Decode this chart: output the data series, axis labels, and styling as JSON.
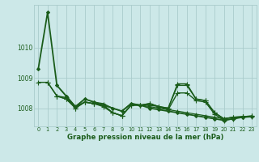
{
  "bg_color": "#cce8e8",
  "grid_color": "#aacccc",
  "line_color": "#1a5c1a",
  "title": "Graphe pression niveau de la mer (hPa)",
  "xlim": [
    -0.5,
    23.5
  ],
  "ylim": [
    1007.4,
    1011.4
  ],
  "yticks": [
    1008,
    1009,
    1010
  ],
  "xticks": [
    0,
    1,
    2,
    3,
    4,
    5,
    6,
    7,
    8,
    9,
    10,
    11,
    12,
    13,
    14,
    15,
    16,
    17,
    18,
    19,
    20,
    21,
    22,
    23
  ],
  "series": [
    {
      "x": [
        0,
        1,
        2,
        3,
        4,
        5,
        6,
        7,
        8,
        9,
        10,
        11,
        12,
        13,
        14,
        15,
        16,
        17,
        18,
        19,
        20,
        21,
        22,
        23
      ],
      "y": [
        1009.3,
        1011.15,
        1008.75,
        1008.4,
        1008.05,
        1008.3,
        1008.2,
        1008.1,
        1008.0,
        1007.9,
        1008.15,
        1008.1,
        1008.0,
        1007.95,
        1007.9,
        1007.85,
        1007.8,
        1007.75,
        1007.7,
        1007.65,
        1007.6,
        1007.65,
        1007.7,
        1007.72
      ],
      "marker": "D",
      "markersize": 2.0,
      "linewidth": 1.3,
      "zorder": 3
    },
    {
      "x": [
        1,
        2,
        3,
        4,
        5,
        6,
        7,
        8,
        9,
        10,
        11,
        12,
        13,
        14,
        15,
        16,
        17,
        18,
        19,
        20,
        21,
        22,
        23
      ],
      "y": [
        1008.85,
        1008.4,
        1008.3,
        1008.05,
        1008.2,
        1008.15,
        1008.05,
        1007.85,
        1007.75,
        1008.1,
        1008.1,
        1008.15,
        1008.05,
        1008.0,
        1008.75,
        1008.75,
        1008.3,
        1008.25,
        1007.85,
        1007.65,
        1007.7,
        1007.72,
        1007.74
      ],
      "marker": "+",
      "markersize": 4.5,
      "linewidth": 1.0,
      "zorder": 2
    },
    {
      "x": [
        0,
        1,
        2,
        3,
        4,
        5,
        6,
        7,
        8,
        9,
        10,
        11,
        12,
        13,
        14,
        15,
        16,
        17,
        18,
        19,
        20,
        21,
        22,
        23
      ],
      "y": [
        1008.85,
        1008.85,
        1008.4,
        1008.3,
        1008.0,
        1008.2,
        1008.15,
        1008.1,
        1007.85,
        1007.75,
        1008.1,
        1008.1,
        1008.1,
        1008.05,
        1007.95,
        1008.5,
        1008.5,
        1008.25,
        1008.2,
        1007.8,
        1007.6,
        1007.65,
        1007.72,
        1007.74
      ],
      "marker": "+",
      "markersize": 4.5,
      "linewidth": 1.0,
      "zorder": 2
    },
    {
      "x": [
        2,
        3,
        4,
        5,
        6,
        7,
        8,
        9,
        10,
        11,
        12,
        13,
        14,
        15,
        16,
        17,
        18,
        19,
        20,
        21,
        22,
        23
      ],
      "y": [
        1008.4,
        1008.35,
        1008.0,
        1008.2,
        1008.15,
        1008.1,
        1007.85,
        1007.75,
        1008.1,
        1008.1,
        1008.15,
        1008.05,
        1008.0,
        1008.8,
        1008.8,
        1008.3,
        1008.25,
        1007.85,
        1007.65,
        1007.7,
        1007.72,
        1007.73
      ],
      "marker": "+",
      "markersize": 4.5,
      "linewidth": 1.0,
      "zorder": 2
    },
    {
      "x": [
        2,
        3,
        4,
        5,
        6,
        7,
        8,
        9,
        10,
        11,
        12,
        13,
        14,
        15,
        16,
        17,
        18,
        19,
        20,
        21,
        22,
        23
      ],
      "y": [
        1008.75,
        1008.4,
        1008.05,
        1008.3,
        1008.2,
        1008.15,
        1008.0,
        1007.9,
        1008.15,
        1008.1,
        1008.05,
        1008.0,
        1007.95,
        1007.9,
        1007.85,
        1007.8,
        1007.75,
        1007.7,
        1007.65,
        1007.7,
        1007.7,
        1007.72
      ],
      "marker": "+",
      "markersize": 3.5,
      "linewidth": 0.9,
      "zorder": 2
    }
  ]
}
